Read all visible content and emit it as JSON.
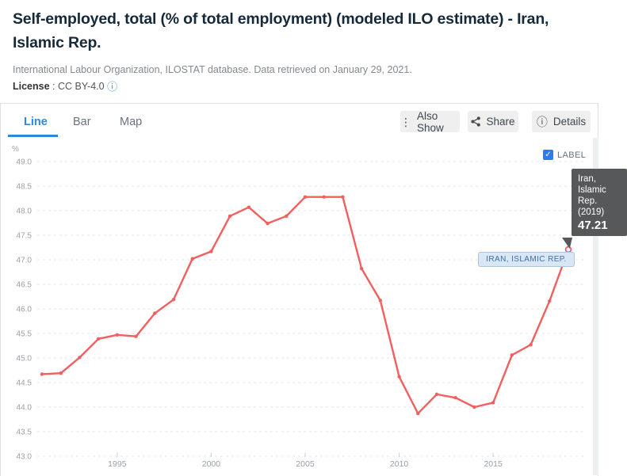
{
  "header": {
    "title": "Self-employed, total (% of total employment) (modeled ILO estimate) - Iran, Islamic Rep.",
    "source": "International Labour Organization, ILOSTAT database. Data retrieved on January 29, 2021.",
    "license_label": "License",
    "license_sep": " : ",
    "license_value": "CC BY-4.0",
    "license_icon": "ⓘ"
  },
  "tabs": [
    {
      "label": "Line",
      "active": true
    },
    {
      "label": "Bar",
      "active": false
    },
    {
      "label": "Map",
      "active": false
    }
  ],
  "toolbar": {
    "also_show_icon": "⋮",
    "also_show": "Also Show",
    "share": "Share",
    "details_icon": "ⓘ",
    "details": "Details"
  },
  "controls": {
    "label_checkbox": {
      "check": "✓",
      "label": "LABEL",
      "checked": true
    }
  },
  "series_flag": "IRAN, ISLAMIC REP.",
  "tooltip": {
    "text": "Iran, Islamic Rep. (2019)",
    "value": "47.21"
  },
  "chart_data": {
    "type": "line",
    "title": "Self-employed, total (% of total employment) (modeled ILO estimate) - Iran, Islamic Rep.",
    "unit": "%",
    "series_name": "Iran, Islamic Rep.",
    "x": [
      1991,
      1992,
      1993,
      1994,
      1995,
      1996,
      1997,
      1998,
      1999,
      2000,
      2001,
      2002,
      2003,
      2004,
      2005,
      2006,
      2007,
      2008,
      2009,
      2010,
      2011,
      2012,
      2013,
      2014,
      2015,
      2016,
      2017,
      2018,
      2019
    ],
    "values": [
      44.67,
      44.69,
      45.01,
      45.39,
      45.47,
      45.44,
      45.91,
      46.19,
      47.02,
      47.17,
      47.89,
      48.07,
      47.74,
      47.89,
      48.28,
      48.28,
      48.28,
      46.82,
      46.17,
      44.62,
      43.87,
      44.26,
      44.19,
      44.0,
      44.09,
      45.06,
      45.27,
      46.16,
      47.21
    ],
    "xticks": [
      1995,
      2000,
      2005,
      2010,
      2015
    ],
    "ylim": [
      43.0,
      49.0
    ],
    "ytick_step": 0.5,
    "grid": "horizontal-dashed",
    "legend_position": "none",
    "line_color": "#f25f5f"
  }
}
